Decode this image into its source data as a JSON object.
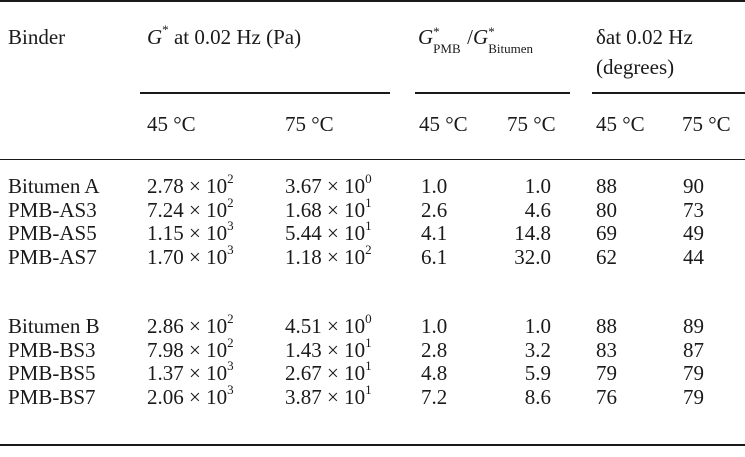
{
  "table": {
    "headers": {
      "binder": "Binder",
      "g_star": {
        "symbol": "G",
        "sup": "*",
        "rest": " at 0.02 Hz (Pa)"
      },
      "ratio": {
        "num": "G",
        "num_sup": "*",
        "num_sub": "PMB",
        "slash": "/",
        "den": "G",
        "den_sup": "*",
        "den_sub": "Bitumen"
      },
      "delta": {
        "line1": "δat 0.02 Hz",
        "line2": "(degrees)"
      },
      "temps": [
        "45 °C",
        "75 °C",
        "45 °C",
        "75 °C",
        "45 °C",
        "75 °C"
      ]
    },
    "times": "×",
    "base": "10",
    "groups": [
      [
        {
          "binder": "Bitumen A",
          "g45": {
            "m": "2.78",
            "e": "2"
          },
          "g75": {
            "m": "3.67",
            "e": "0"
          },
          "r45": "1.0",
          "r75": "1.0",
          "d45": "88",
          "d75": "90"
        },
        {
          "binder": "PMB-AS3",
          "g45": {
            "m": "7.24",
            "e": "2"
          },
          "g75": {
            "m": "1.68",
            "e": "1"
          },
          "r45": "2.6",
          "r75": "4.6",
          "d45": "80",
          "d75": "73"
        },
        {
          "binder": "PMB-AS5",
          "g45": {
            "m": "1.15",
            "e": "3"
          },
          "g75": {
            "m": "5.44",
            "e": "1"
          },
          "r45": "4.1",
          "r75": "14.8",
          "d45": "69",
          "d75": "49"
        },
        {
          "binder": "PMB-AS7",
          "g45": {
            "m": "1.70",
            "e": "3"
          },
          "g75": {
            "m": "1.18",
            "e": "2"
          },
          "r45": "6.1",
          "r75": "32.0",
          "d45": "62",
          "d75": "44"
        }
      ],
      [
        {
          "binder": "Bitumen B",
          "g45": {
            "m": "2.86",
            "e": "2"
          },
          "g75": {
            "m": "4.51",
            "e": "0"
          },
          "r45": "1.0",
          "r75": "1.0",
          "d45": "88",
          "d75": "89"
        },
        {
          "binder": "PMB-BS3",
          "g45": {
            "m": "7.98",
            "e": "2"
          },
          "g75": {
            "m": "1.43",
            "e": "1"
          },
          "r45": "2.8",
          "r75": "3.2",
          "d45": "83",
          "d75": "87"
        },
        {
          "binder": "PMB-BS5",
          "g45": {
            "m": "1.37",
            "e": "3"
          },
          "g75": {
            "m": "2.67",
            "e": "1"
          },
          "r45": "4.8",
          "r75": "5.9",
          "d45": "79",
          "d75": "79"
        },
        {
          "binder": "PMB-BS7",
          "g45": {
            "m": "2.06",
            "e": "3"
          },
          "g75": {
            "m": "3.87",
            "e": "1"
          },
          "r45": "7.2",
          "r75": "8.6",
          "d45": "76",
          "d75": "79"
        }
      ]
    ]
  }
}
